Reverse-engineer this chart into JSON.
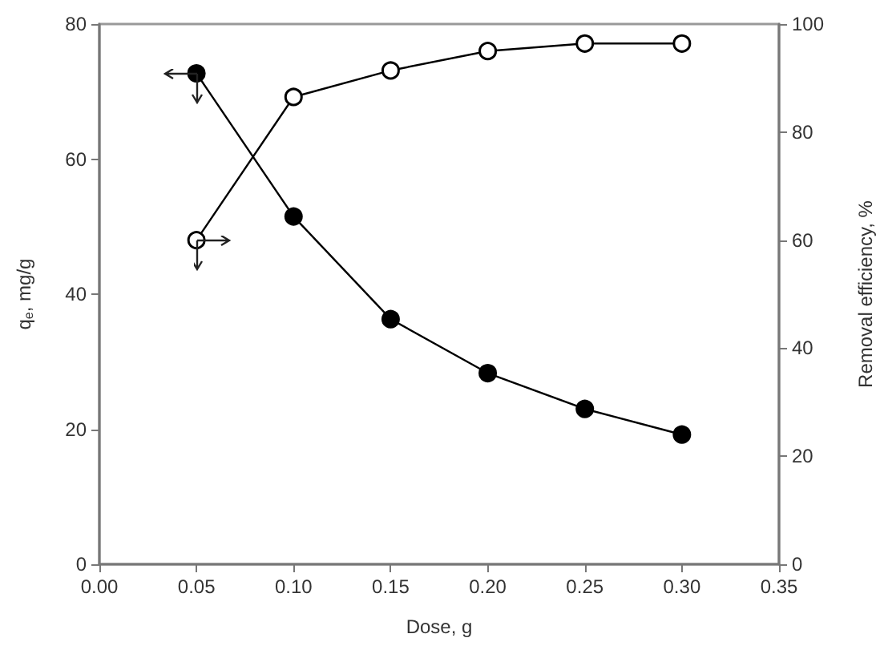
{
  "chart_data": {
    "type": "line",
    "xlabel": "Dose, g",
    "ylabel": "q$_{e}$, mg/g",
    "y2label": "Removal efficiency, %",
    "x": [
      0.05,
      0.1,
      0.15,
      0.2,
      0.25,
      0.3
    ],
    "series": [
      {
        "color": "#000000",
        "values": [
          72.7,
          51.5,
          36.3,
          28.3,
          23.0,
          19.2
        ]
      },
      {
        "color": "#000000",
        "axis": "y2",
        "values": [
          60,
          86.5,
          91.4,
          95.0,
          96.4,
          96.4
        ]
      }
    ],
    "xlim": [
      0,
      0.35
    ],
    "xticks": [
      {
        "value": 0,
        "label": "0.00"
      },
      {
        "value": 0.05,
        "label": "0.05"
      },
      {
        "value": 0.1,
        "label": "0.10"
      },
      {
        "value": 0.15,
        "label": "0.15"
      },
      {
        "value": 0.2,
        "label": "0.20"
      },
      {
        "value": 0.25,
        "label": "0.25"
      },
      {
        "value": 0.3,
        "label": "0.30"
      },
      {
        "value": 0.35,
        "label": "0.35"
      }
    ],
    "ylim": [
      0,
      80
    ],
    "yticks": [
      0,
      20,
      40,
      60,
      80
    ],
    "y2lim": [
      0,
      100
    ],
    "y2ticks": [
      0,
      20,
      40,
      60,
      80,
      100
    ],
    "grid": false,
    "marker": "circle",
    "line_style": "solid"
  }
}
